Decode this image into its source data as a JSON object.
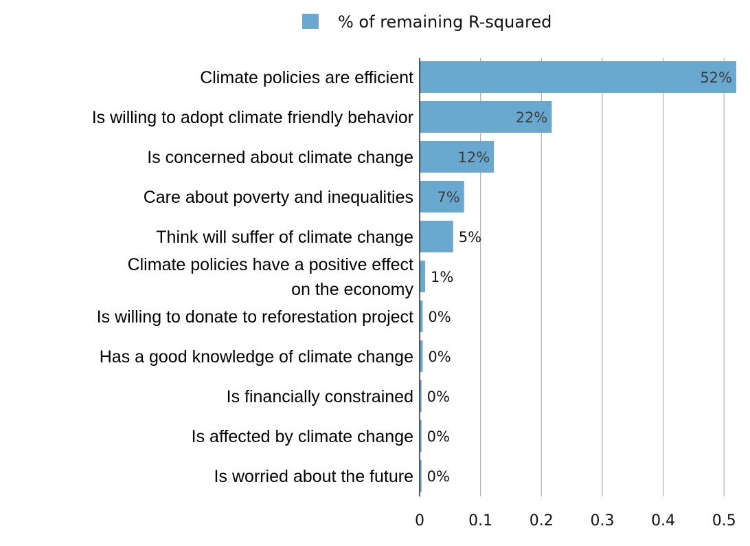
{
  "chart_data": {
    "type": "bar",
    "orientation": "horizontal",
    "categories": [
      "Climate policies are efficient",
      "Is willing to adopt climate friendly behavior",
      "Is concerned about climate change",
      "Care about poverty and inequalities",
      "Think will suffer of climate change",
      "Climate policies have a positive effect on the economy",
      "Is willing to donate to reforestation project",
      "Has a good knowledge of climate change",
      "Is financially constrained",
      "Is affected by climate change",
      "Is worried about the future"
    ],
    "category_lines": [
      [
        "Climate policies are efficient"
      ],
      [
        "Is willing to adopt climate friendly behavior"
      ],
      [
        "Is concerned about climate change"
      ],
      [
        "Care about poverty and inequalities"
      ],
      [
        "Think will suffer of climate change"
      ],
      [
        "Climate policies have a positive effect",
        "on the economy"
      ],
      [
        "Is willing to donate to reforestation project"
      ],
      [
        "Has a good knowledge of climate change"
      ],
      [
        "Is financially constrained"
      ],
      [
        "Is affected by climate change"
      ],
      [
        "Is worried about the future"
      ]
    ],
    "series": [
      {
        "name": "% of remaining R-squared",
        "values": [
          0.52,
          0.217,
          0.122,
          0.073,
          0.055,
          0.009,
          0.005,
          0.005,
          0.003,
          0.003,
          0.003
        ],
        "labels": [
          "52%",
          "22%",
          "12%",
          "7%",
          "5%",
          "1%",
          "0%",
          "0%",
          "0%",
          "0%",
          "0%"
        ],
        "color": "#69a9cf"
      }
    ],
    "xlim": [
      0,
      0.52
    ],
    "xticks": [
      0,
      0.1,
      0.2,
      0.3,
      0.4,
      0.5
    ],
    "xtick_labels": [
      "0",
      "0.1",
      "0.2",
      "0.3",
      "0.4",
      "0.5"
    ],
    "grid": "vertical",
    "grid_color": "#b0b0b0",
    "legend_position": "top-center",
    "title": "",
    "xlabel": "",
    "ylabel": ""
  }
}
